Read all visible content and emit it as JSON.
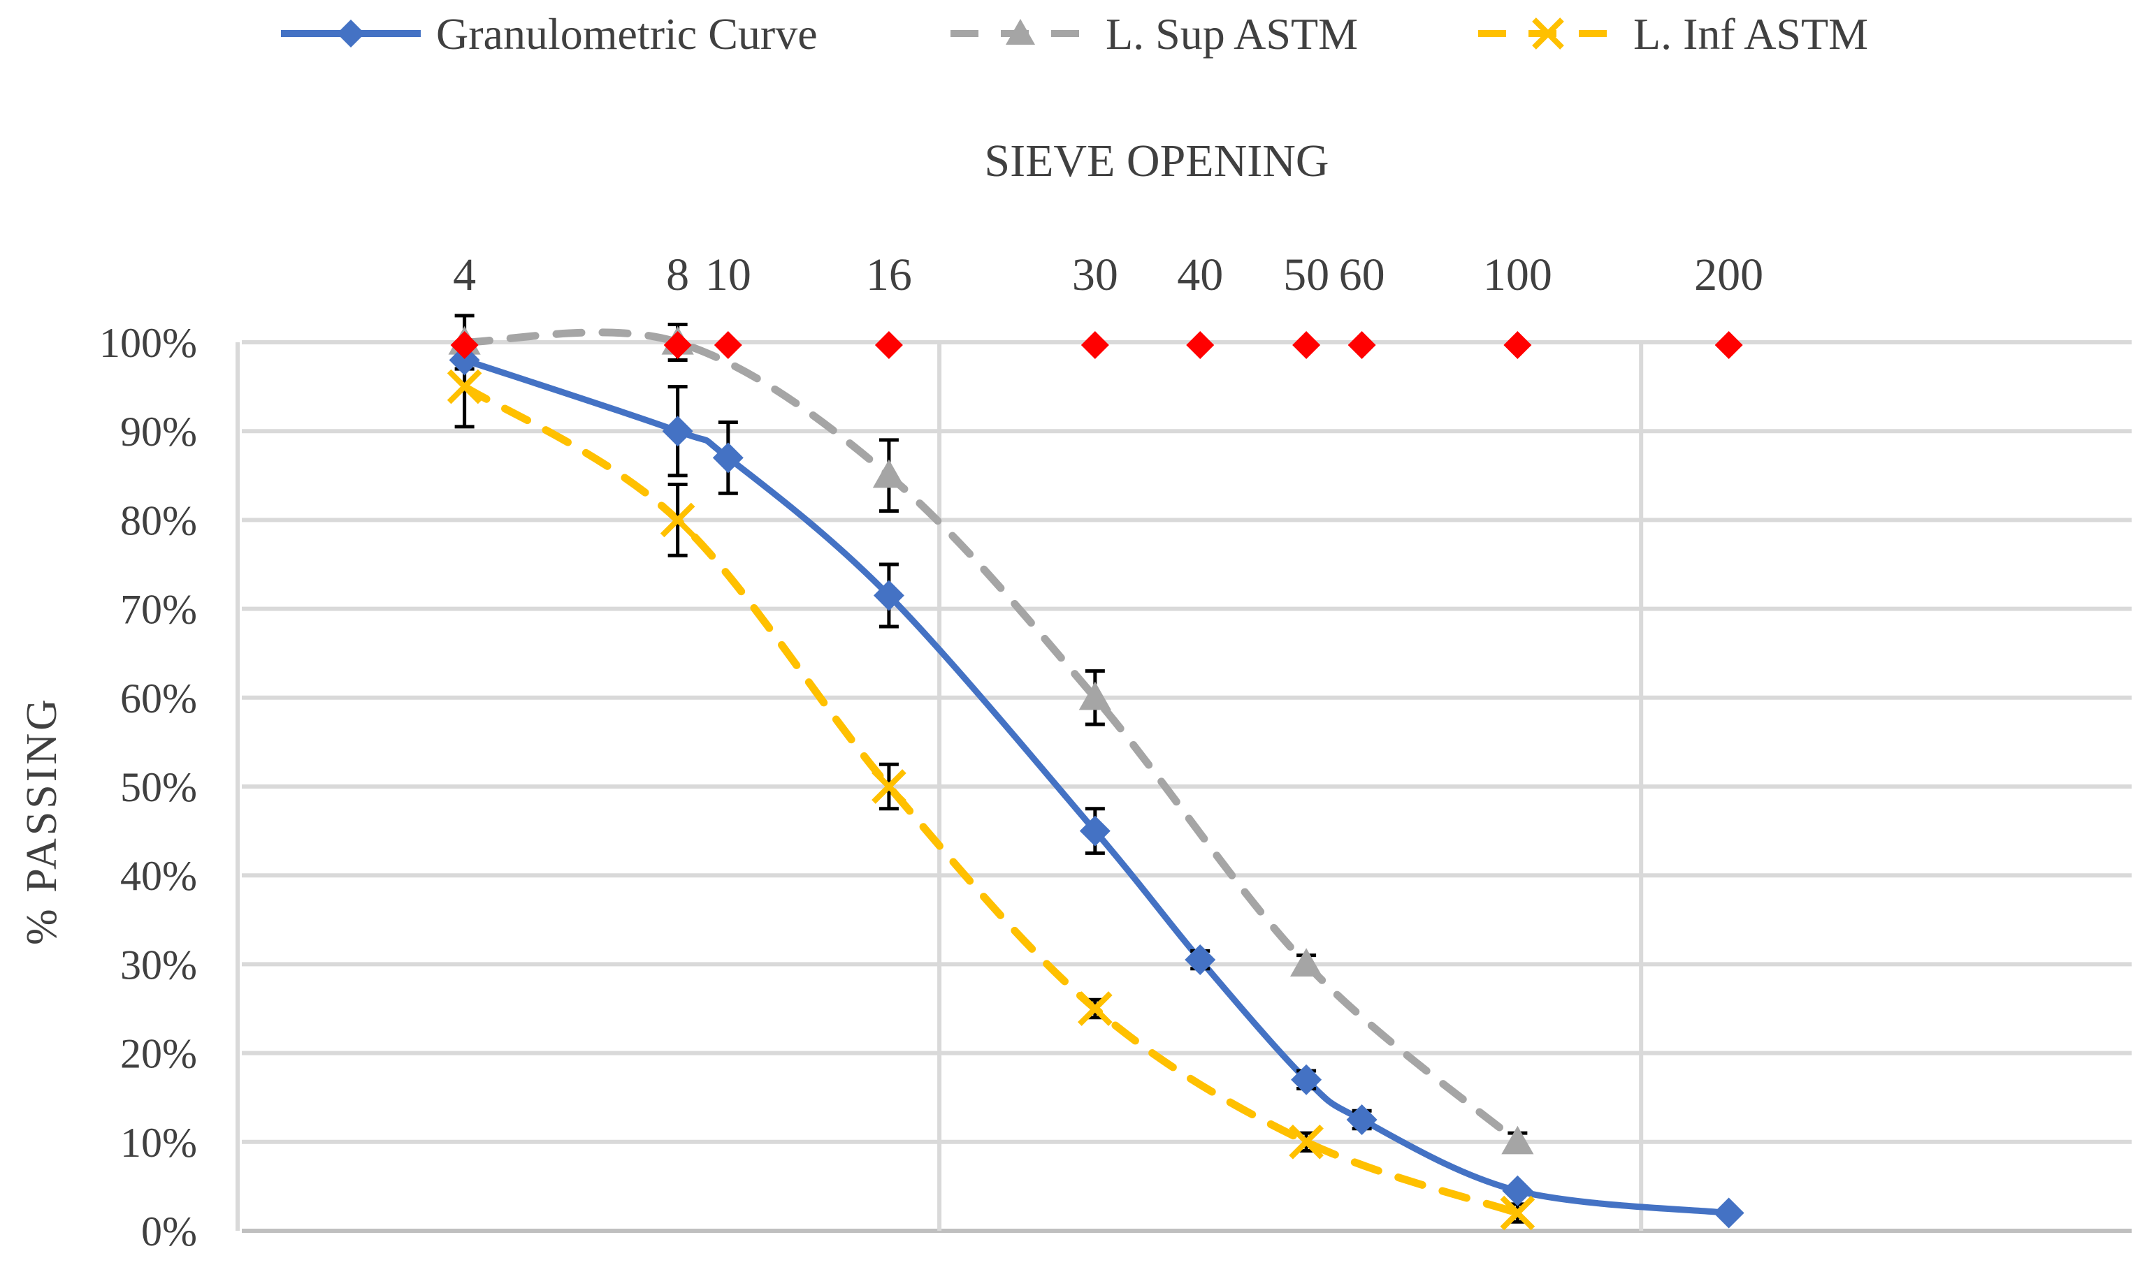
{
  "chart_data": {
    "type": "line",
    "title": "SIEVE OPENING",
    "xlabel": "SIEVE OPENING",
    "ylabel": "% PASSING",
    "x_scale": "log",
    "x_domain_mm": [
      10,
      0.02
    ],
    "ylim": [
      0,
      100
    ],
    "y_ticks": [
      "0%",
      "10%",
      "20%",
      "30%",
      "40%",
      "50%",
      "60%",
      "70%",
      "80%",
      "90%",
      "100%"
    ],
    "grid": true,
    "legend_position": "top",
    "sieves": [
      {
        "label": "4",
        "opening_mm": 4.75
      },
      {
        "label": "8",
        "opening_mm": 2.36
      },
      {
        "label": "10",
        "opening_mm": 2.0
      },
      {
        "label": "16",
        "opening_mm": 1.18
      },
      {
        "label": "30",
        "opening_mm": 0.6
      },
      {
        "label": "40",
        "opening_mm": 0.425
      },
      {
        "label": "50",
        "opening_mm": 0.3
      },
      {
        "label": "60",
        "opening_mm": 0.25
      },
      {
        "label": "100",
        "opening_mm": 0.15
      },
      {
        "label": "200",
        "opening_mm": 0.075
      }
    ],
    "sieve_marker_color": "#ff0000",
    "series": [
      {
        "name": "Granulometric Curve",
        "color": "#4472c4",
        "style": "solid",
        "marker": "diamond",
        "points": [
          {
            "x": 4.75,
            "y": 98,
            "err": 0
          },
          {
            "x": 2.36,
            "y": 90,
            "err": 5
          },
          {
            "x": 2.0,
            "y": 87,
            "err": 4
          },
          {
            "x": 1.18,
            "y": 71.5,
            "err": 3.5
          },
          {
            "x": 0.6,
            "y": 45,
            "err": 2.5
          },
          {
            "x": 0.425,
            "y": 30.5,
            "err": 1
          },
          {
            "x": 0.3,
            "y": 17,
            "err": 1
          },
          {
            "x": 0.25,
            "y": 12.5,
            "err": 1
          },
          {
            "x": 0.15,
            "y": 4.5,
            "err": 0
          },
          {
            "x": 0.075,
            "y": 2,
            "err": 0
          }
        ]
      },
      {
        "name": "L. Sup ASTM",
        "color": "#a5a5a5",
        "style": "dashed",
        "marker": "triangle",
        "points": [
          {
            "x": 4.75,
            "y": 100,
            "err": 3
          },
          {
            "x": 2.36,
            "y": 100,
            "err": 2
          },
          {
            "x": 1.18,
            "y": 85,
            "err": 4
          },
          {
            "x": 0.6,
            "y": 60,
            "err": 3
          },
          {
            "x": 0.3,
            "y": 30,
            "err": 1
          },
          {
            "x": 0.15,
            "y": 10,
            "err": 1
          }
        ]
      },
      {
        "name": "L. Inf ASTM",
        "color": "#ffc000",
        "style": "dashed",
        "marker": "cross",
        "points": [
          {
            "x": 4.75,
            "y": 95,
            "err": 4.5
          },
          {
            "x": 2.36,
            "y": 80,
            "err": 4
          },
          {
            "x": 1.18,
            "y": 50,
            "err": 2.5
          },
          {
            "x": 0.6,
            "y": 25,
            "err": 1
          },
          {
            "x": 0.3,
            "y": 10,
            "err": 1
          },
          {
            "x": 0.15,
            "y": 2,
            "err": 1
          }
        ]
      }
    ]
  }
}
